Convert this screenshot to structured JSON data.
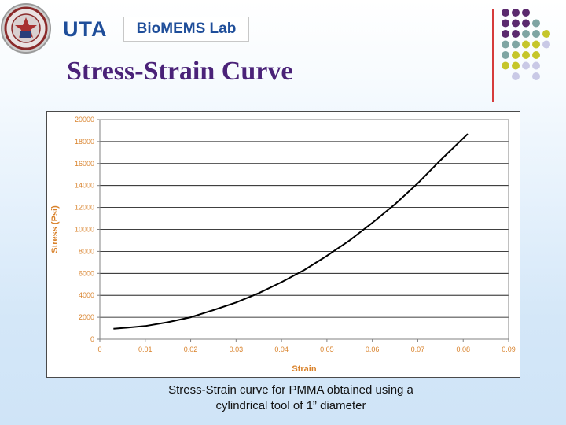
{
  "header": {
    "uta_logo_text": "UTA",
    "lab_name": "BioMEMS Lab",
    "title": "Stress-Strain Curve"
  },
  "caption": {
    "line1": "Stress-Strain curve for PMMA obtained using a",
    "line2": "cylindrical tool of 1” diameter"
  },
  "colors": {
    "title": "#4a2278",
    "axis_text": "#d9822b",
    "curve": "#000000",
    "divider": "#d63c3c",
    "dot_purple": "#5b2a6e",
    "dot_teal": "#7fa5a3",
    "dot_olive": "#c6c62a",
    "dot_lavender": "#c9c9e6"
  },
  "decor_dots": [
    [
      "purple",
      "purple",
      "purple",
      "",
      "",
      ""
    ],
    [
      "purple",
      "purple",
      "purple",
      "teal",
      "",
      ""
    ],
    [
      "purple",
      "purple",
      "teal",
      "teal",
      "olive",
      ""
    ],
    [
      "teal",
      "teal",
      "olive",
      "olive",
      "lavender",
      ""
    ],
    [
      "teal",
      "olive",
      "olive",
      "olive",
      "",
      ""
    ],
    [
      "olive",
      "olive",
      "lavender",
      "lavender",
      "",
      ""
    ],
    [
      "",
      "lavender",
      "",
      "lavender",
      "",
      ""
    ]
  ],
  "chart_data": {
    "type": "line",
    "title": "",
    "xlabel": "Strain",
    "ylabel": "Stress (Psi)",
    "xlim": [
      0,
      0.09
    ],
    "ylim": [
      0,
      20000
    ],
    "x_ticks": [
      "0",
      "0.01",
      "0.02",
      "0.03",
      "0.04",
      "0.05",
      "0.06",
      "0.07",
      "0.08",
      "0.09"
    ],
    "y_ticks": [
      "0",
      "2000",
      "4000",
      "6000",
      "8000",
      "10000",
      "12000",
      "14000",
      "16000",
      "18000",
      "20000"
    ],
    "grid": "horizontal",
    "legend": "none",
    "series": [
      {
        "x": [
          0.003,
          0.006,
          0.01,
          0.015,
          0.02,
          0.025,
          0.03,
          0.035,
          0.04,
          0.045,
          0.05,
          0.055,
          0.06,
          0.065,
          0.07,
          0.075,
          0.08,
          0.081
        ],
        "y": [
          950,
          1050,
          1200,
          1550,
          2000,
          2650,
          3350,
          4200,
          5200,
          6300,
          7600,
          9000,
          10600,
          12300,
          14200,
          16300,
          18300,
          18700
        ]
      }
    ]
  }
}
